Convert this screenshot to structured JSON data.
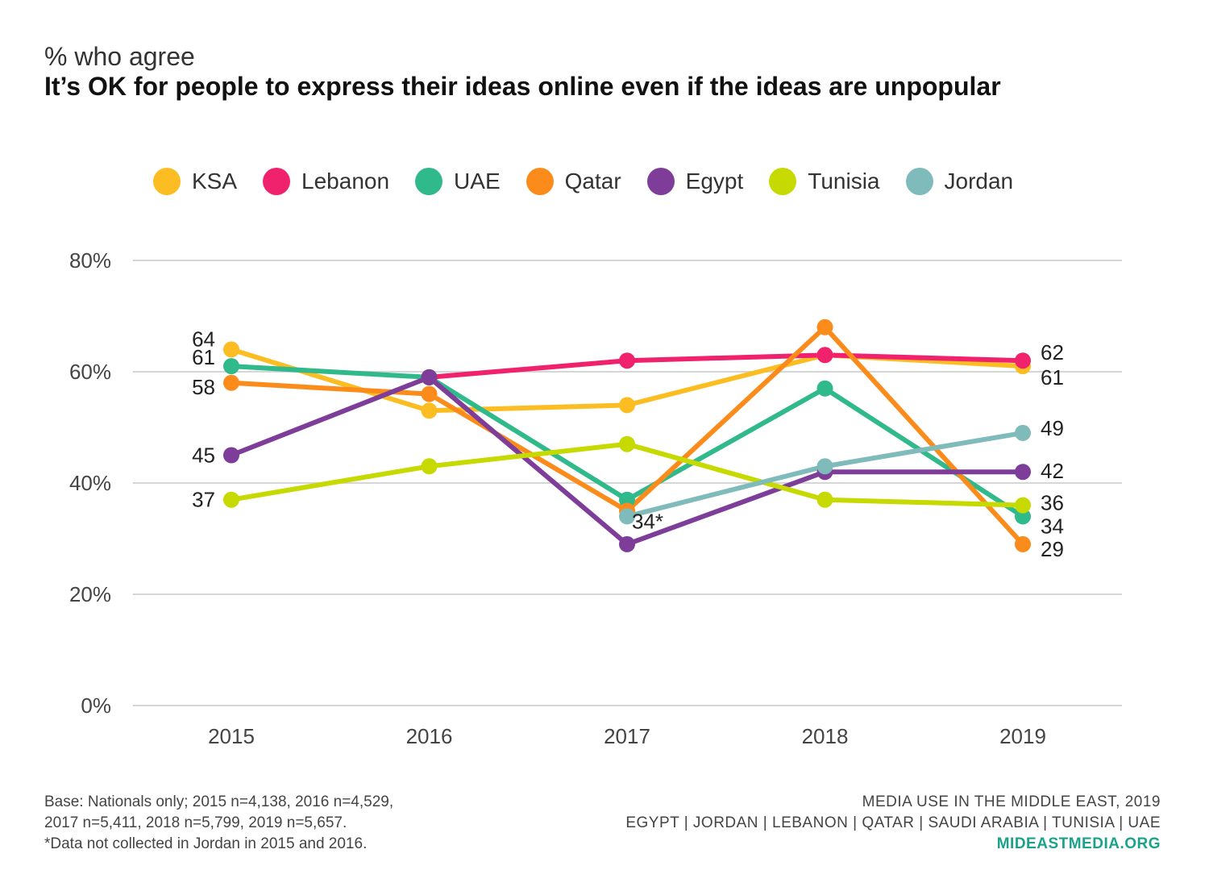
{
  "header": {
    "subtitle": "% who agree",
    "title": "It’s OK for people to express their ideas online even if the ideas are unpopular"
  },
  "footer": {
    "base_lines": [
      "Base: Nationals only; 2015 n=4,138, 2016 n=4,529,",
      "2017 n=5,411, 2018 n=5,799, 2019 n=5,657.",
      "*Data not collected in Jordan in 2015 and 2016."
    ],
    "source_title": "MEDIA USE IN THE MIDDLE EAST, 2019",
    "countries": "EGYPT | JORDAN | LEBANON | QATAR | SAUDI ARABIA | TUNISIA | UAE",
    "url": "MIDEASTMEDIA.ORG"
  },
  "chart_data": {
    "type": "line",
    "x": [
      "2015",
      "2016",
      "2017",
      "2018",
      "2019"
    ],
    "ylim": [
      0,
      80
    ],
    "yticks": [
      0,
      20,
      40,
      60,
      80
    ],
    "ytick_labels": [
      "0%",
      "20%",
      "40%",
      "60%",
      "80%"
    ],
    "grid": true,
    "legend_position": "top",
    "series": [
      {
        "name": "KSA",
        "color": "#fbbd22",
        "values": [
          64,
          53,
          54,
          63,
          61
        ]
      },
      {
        "name": "Lebanon",
        "color": "#f0226d",
        "values": [
          null,
          59,
          62,
          63,
          62
        ]
      },
      {
        "name": "UAE",
        "color": "#30b98b",
        "values": [
          61,
          59,
          37,
          57,
          34
        ]
      },
      {
        "name": "Qatar",
        "color": "#fb8c1c",
        "values": [
          58,
          56,
          35,
          68,
          29
        ]
      },
      {
        "name": "Egypt",
        "color": "#7d3d98",
        "values": [
          45,
          59,
          29,
          42,
          42
        ]
      },
      {
        "name": "Tunisia",
        "color": "#c6d900",
        "values": [
          37,
          43,
          47,
          37,
          36
        ]
      },
      {
        "name": "Jordan",
        "color": "#7fbbba",
        "values": [
          null,
          null,
          34,
          43,
          49
        ]
      }
    ],
    "annotations": [
      {
        "text": "64",
        "x": "2015",
        "y": 64
      },
      {
        "text": "61",
        "x": "2015",
        "y": 61
      },
      {
        "text": "58",
        "x": "2015",
        "y": 58
      },
      {
        "text": "45",
        "x": "2015",
        "y": 45
      },
      {
        "text": "37",
        "x": "2015",
        "y": 37
      },
      {
        "text": "34*",
        "x": "2017",
        "y": 34
      },
      {
        "text": "62",
        "x": "2019",
        "y": 62
      },
      {
        "text": "61",
        "x": "2019",
        "y": 61
      },
      {
        "text": "49",
        "x": "2019",
        "y": 49
      },
      {
        "text": "42",
        "x": "2019",
        "y": 42
      },
      {
        "text": "36",
        "x": "2019",
        "y": 36
      },
      {
        "text": "34",
        "x": "2019",
        "y": 34
      },
      {
        "text": "29",
        "x": "2019",
        "y": 29
      }
    ]
  }
}
